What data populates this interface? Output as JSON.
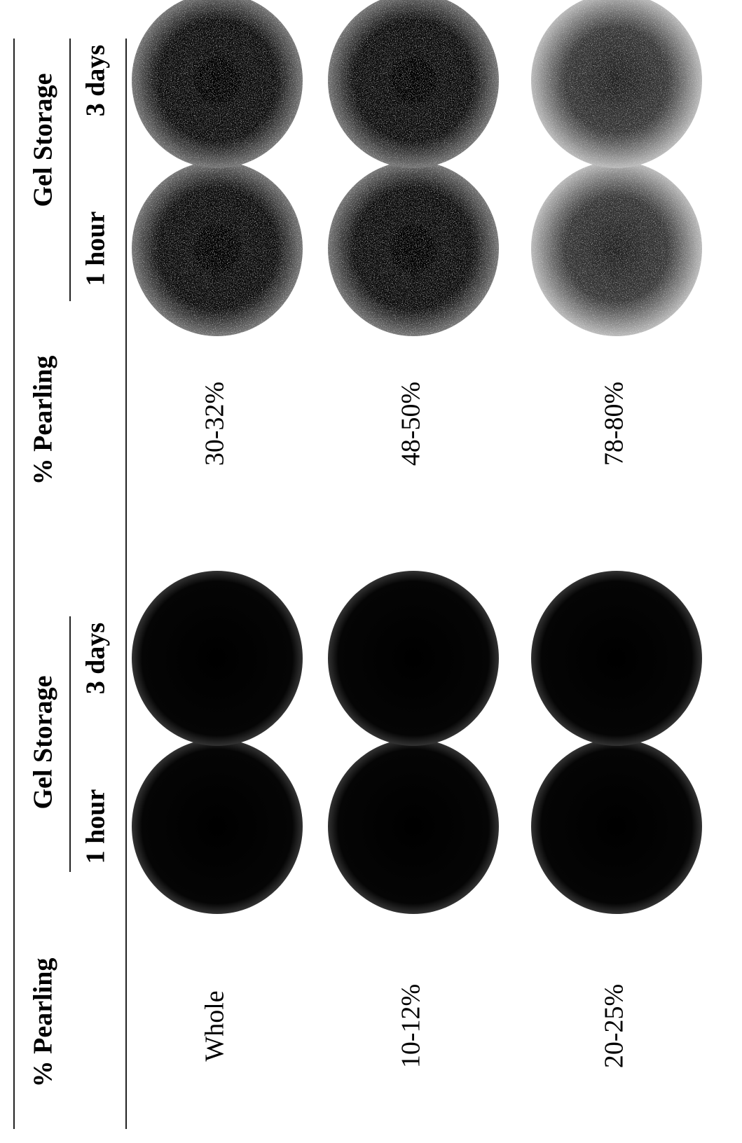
{
  "tables": [
    {
      "header": {
        "pearling": "% Pearling",
        "gel_storage": "Gel Storage",
        "columns": [
          "1 hour",
          "3 days"
        ]
      },
      "rows": [
        "Whole",
        "10-12%",
        "20-25%"
      ]
    },
    {
      "header": {
        "pearling": "% Pearling",
        "gel_storage": "Gel Storage",
        "columns": [
          "1 hour",
          "3 days"
        ]
      },
      "rows": [
        "30-32%",
        "48-50%",
        "78-80%"
      ]
    }
  ]
}
